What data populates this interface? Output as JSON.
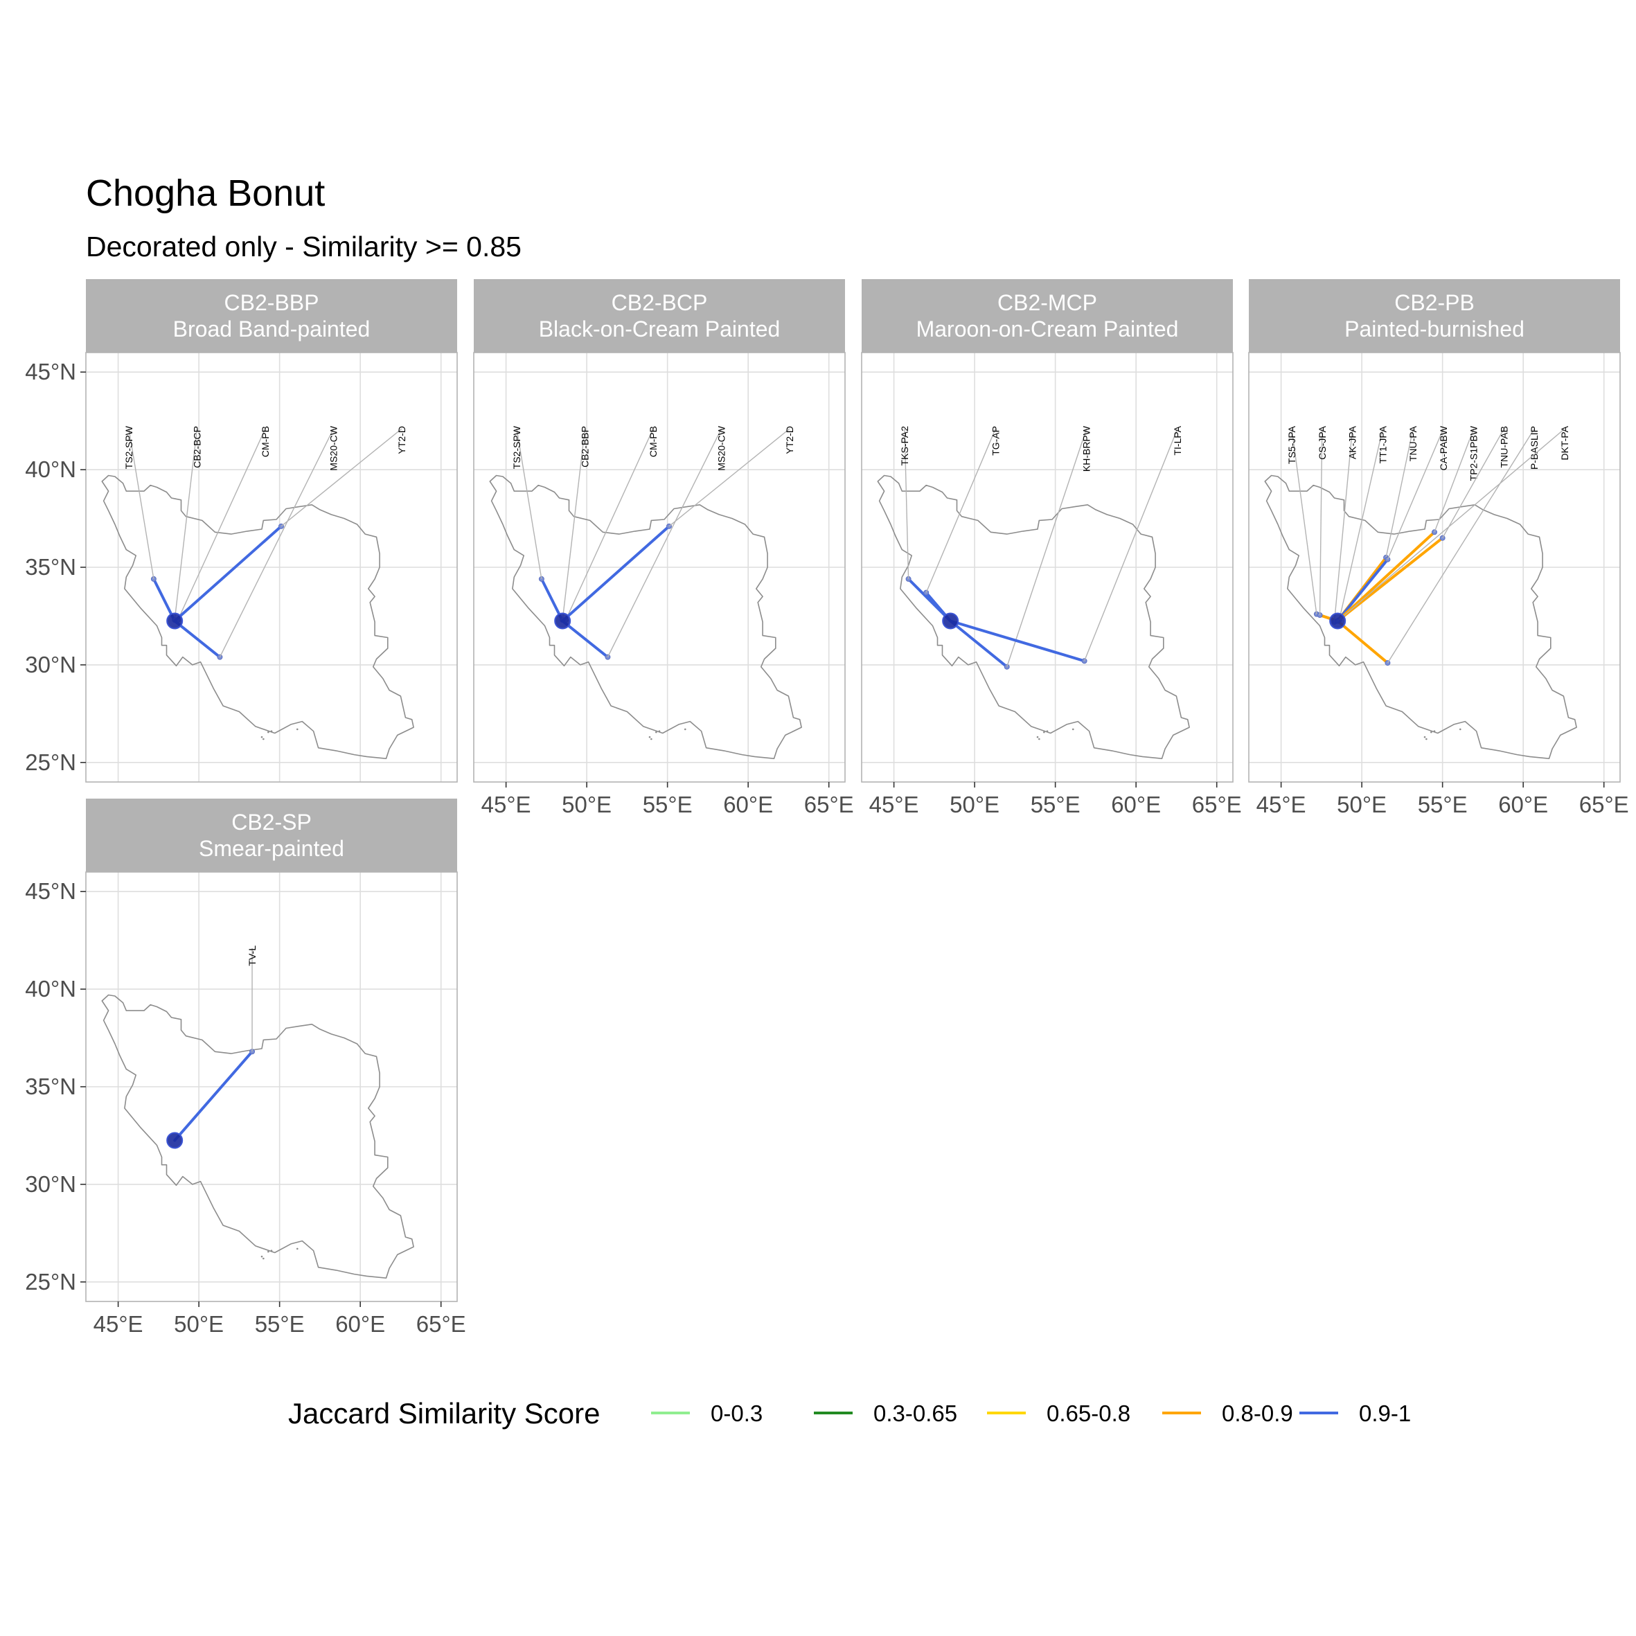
{
  "title": "Chogha Bonut",
  "subtitle": "Decorated only - Similarity >= 0.85",
  "chart_data": {
    "type": "map",
    "x_axis": {
      "ticks": [
        "45°E",
        "50°E",
        "55°E",
        "60°E",
        "65°E"
      ],
      "tick_values": [
        45,
        50,
        55,
        60,
        65
      ],
      "lim": [
        43,
        66
      ]
    },
    "y_axis": {
      "ticks": [
        "25°N",
        "30°N",
        "35°N",
        "40°N",
        "45°N"
      ],
      "tick_values": [
        25,
        30,
        35,
        40,
        45
      ],
      "lim": [
        24,
        46
      ]
    },
    "origin": {
      "lon": 48.5,
      "lat": 32.25
    },
    "legend": {
      "title": "Jaccard Similarity Score",
      "placement": "bottom",
      "items": [
        {
          "label": "0-0.3",
          "color": "#90EE90"
        },
        {
          "label": "0.3-0.65",
          "color": "#228B22"
        },
        {
          "label": "0.65-0.8",
          "color": "#FFD700"
        },
        {
          "label": "0.8-0.9",
          "color": "#FFA500"
        },
        {
          "label": "0.9-1",
          "color": "#4169E1"
        }
      ]
    },
    "panels": [
      {
        "code": "CB2-BBP",
        "name": "Broad Band-painted",
        "sites": [
          {
            "label": "TS2-SPW",
            "lon": 47.2,
            "lat": 34.4,
            "score": "0.9-1"
          },
          {
            "label": "CB2-BCP",
            "lon": 48.5,
            "lat": 32.3,
            "score": "0.9-1"
          },
          {
            "label": "CM-PB",
            "lon": 48.7,
            "lat": 32.3,
            "score": "0.9-1"
          },
          {
            "label": "MS20-CW",
            "lon": 51.3,
            "lat": 30.4,
            "score": "0.9-1"
          },
          {
            "label": "YT2-D",
            "lon": 55.1,
            "lat": 37.1,
            "score": "0.9-1"
          }
        ]
      },
      {
        "code": "CB2-BCP",
        "name": "Black-on-Cream Painted",
        "sites": [
          {
            "label": "TS2-SPW",
            "lon": 47.2,
            "lat": 34.4,
            "score": "0.9-1"
          },
          {
            "label": "CB2-BBP",
            "lon": 48.5,
            "lat": 32.3,
            "score": "0.9-1"
          },
          {
            "label": "CM-PB",
            "lon": 48.7,
            "lat": 32.3,
            "score": "0.9-1"
          },
          {
            "label": "MS20-CW",
            "lon": 51.3,
            "lat": 30.4,
            "score": "0.9-1"
          },
          {
            "label": "YT2-D",
            "lon": 55.1,
            "lat": 37.1,
            "score": "0.9-1"
          }
        ]
      },
      {
        "code": "CB2-MCP",
        "name": "Maroon-on-Cream Painted",
        "sites": [
          {
            "label": "TKS-PA2",
            "lon": 45.9,
            "lat": 34.4,
            "score": "0.9-1"
          },
          {
            "label": "TG-AP",
            "lon": 47.0,
            "lat": 33.7,
            "score": "0.9-1"
          },
          {
            "label": "KH-BRPW",
            "lon": 52.0,
            "lat": 29.9,
            "score": "0.9-1"
          },
          {
            "label": "TI-LPA",
            "lon": 56.8,
            "lat": 30.2,
            "score": "0.9-1"
          }
        ]
      },
      {
        "code": "CB2-PB",
        "name": "Painted-burnished",
        "sites": [
          {
            "label": "TS5-JPA",
            "lon": 47.2,
            "lat": 32.6,
            "score": "0.8-0.9"
          },
          {
            "label": "CS-JPA",
            "lon": 47.4,
            "lat": 32.55,
            "score": "0.8-0.9"
          },
          {
            "label": "AK-JPA",
            "lon": 48.3,
            "lat": 32.2,
            "score": "0.8-0.9"
          },
          {
            "label": "TT1-JPA",
            "lon": 48.6,
            "lat": 32.3,
            "score": "0.8-0.9"
          },
          {
            "label": "TNU-PA",
            "lon": 51.5,
            "lat": 35.5,
            "score": "0.8-0.9"
          },
          {
            "label": "CA-PABW",
            "lon": 51.6,
            "lat": 35.4,
            "score": "0.9-1"
          },
          {
            "label": "TP2-S1PBW",
            "lon": 54.5,
            "lat": 36.8,
            "score": "0.8-0.9"
          },
          {
            "label": "TNU-PAB",
            "lon": 55.0,
            "lat": 36.5,
            "score": "0.8-0.9"
          },
          {
            "label": "P-BASLIP",
            "lon": 51.6,
            "lat": 30.1,
            "score": "0.8-0.9"
          },
          {
            "label": "DKT-PA",
            "lon": 48.5,
            "lat": 32.25,
            "score": "0.8-0.9"
          }
        ]
      },
      {
        "code": "CB2-SP",
        "name": "Smear-painted",
        "sites": [
          {
            "label": "TV-L",
            "lon": 53.3,
            "lat": 36.8,
            "score": "0.9-1"
          }
        ]
      }
    ]
  }
}
